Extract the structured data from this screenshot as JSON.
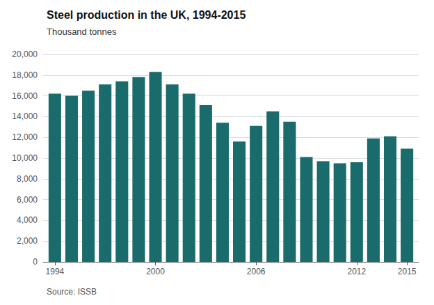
{
  "chart_data": {
    "type": "bar",
    "title": "Steel production in the UK, 1994-2015",
    "subtitle": "Thousand tonnes",
    "source": "Source: ISSB",
    "x": [
      1994,
      1995,
      1996,
      1997,
      1998,
      1999,
      2000,
      2001,
      2002,
      2003,
      2004,
      2005,
      2006,
      2007,
      2008,
      2009,
      2010,
      2011,
      2012,
      2013,
      2014,
      2015
    ],
    "values": [
      16200,
      16000,
      16500,
      17100,
      17400,
      17800,
      18300,
      17100,
      16200,
      15100,
      13400,
      11600,
      13100,
      14500,
      13500,
      10100,
      9700,
      9500,
      9600,
      11900,
      12100,
      10900
    ],
    "color": "#1a6b6b",
    "xlim": [
      1993.3,
      2015.7
    ],
    "xticks": [
      1994,
      2000,
      2006,
      2012,
      2015
    ],
    "ylim": [
      0,
      20000
    ],
    "yticks": [
      0,
      {
        "value": 2000,
        "label": "2,000"
      },
      {
        "value": 4000,
        "label": "4,000"
      },
      {
        "value": 6000,
        "label": "6,000"
      },
      {
        "value": 8000,
        "label": "8,000"
      },
      {
        "value": 10000,
        "label": "10,000"
      },
      {
        "value": 12000,
        "label": "12,000"
      },
      {
        "value": 14000,
        "label": "14,000"
      },
      {
        "value": 16000,
        "label": "16,000"
      },
      {
        "value": 18000,
        "label": "18,000"
      },
      {
        "value": 20000,
        "label": "20,000"
      }
    ],
    "grid": true
  }
}
